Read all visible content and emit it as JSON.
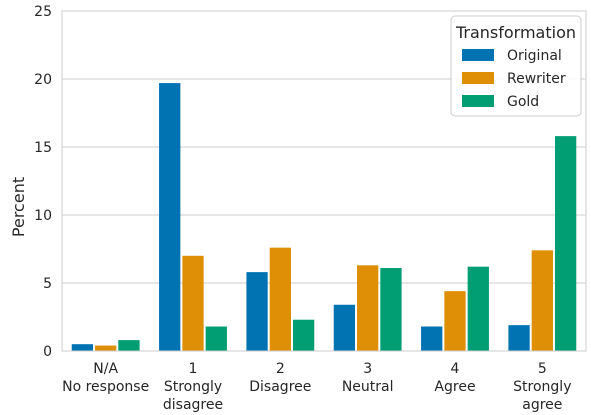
{
  "chart_data": {
    "type": "bar",
    "ylabel": "Percent",
    "xlabel": "",
    "ylim": [
      0,
      25
    ],
    "yticks": [
      0,
      5,
      10,
      15,
      20,
      25
    ],
    "grid": "horizontal",
    "categories": [
      [
        "N/A",
        "No response"
      ],
      [
        "1",
        "Strongly",
        "disagree"
      ],
      [
        "2",
        "Disagree"
      ],
      [
        "3",
        "Neutral"
      ],
      [
        "4",
        "Agree"
      ],
      [
        "5",
        "Strongly",
        "agree"
      ]
    ],
    "legend": {
      "title": "Transformation",
      "position": "top-right"
    },
    "series": [
      {
        "name": "Original",
        "color": "#0173b2",
        "values": [
          0.5,
          19.7,
          5.8,
          3.4,
          1.8,
          1.9
        ]
      },
      {
        "name": "Rewriter",
        "color": "#de8f05",
        "values": [
          0.4,
          7.0,
          7.6,
          6.3,
          4.4,
          7.4
        ]
      },
      {
        "name": "Gold",
        "color": "#029e73",
        "values": [
          0.8,
          1.8,
          2.3,
          6.1,
          6.2,
          15.8
        ]
      }
    ]
  }
}
